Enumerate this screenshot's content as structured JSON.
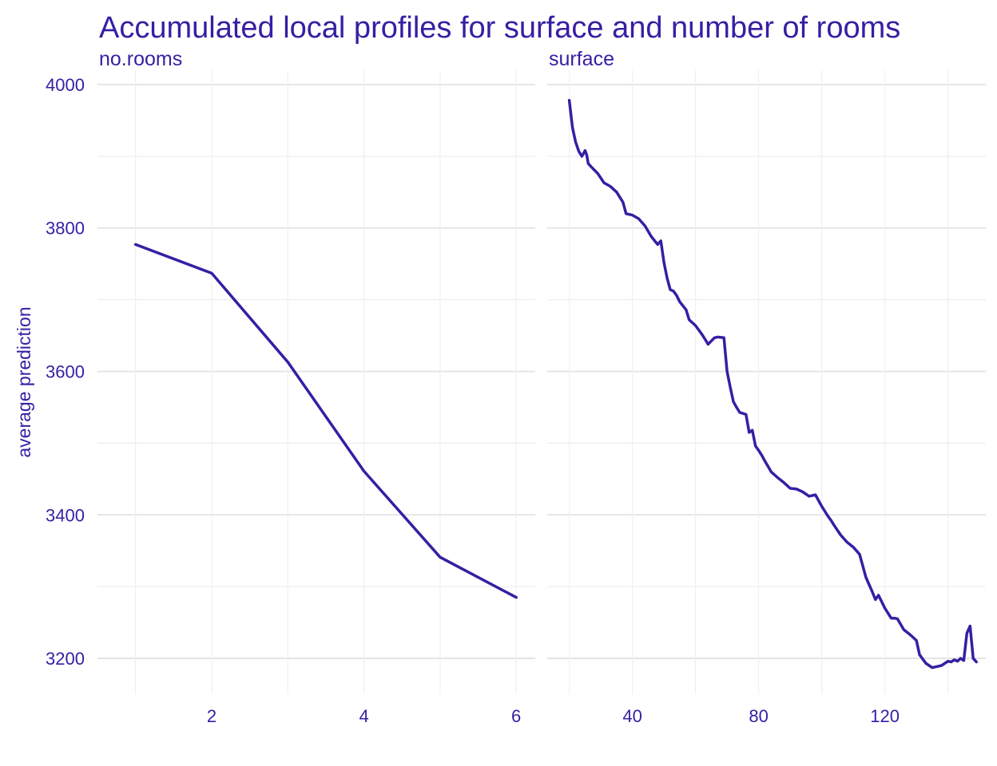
{
  "chart_data": {
    "type": "line",
    "title": "Accumulated local profiles for surface and number of rooms",
    "ylabel": "average prediction",
    "ylim": [
      3150,
      4020
    ],
    "yticks": [
      3200,
      3400,
      3600,
      3800,
      4000
    ],
    "grid": true,
    "color": "#371ea3",
    "panels": [
      {
        "name": "no.rooms",
        "xlim": [
          0.5,
          6.25
        ],
        "xticks": [
          2,
          4,
          6
        ],
        "series": [
          {
            "x": [
              1,
              2,
              3,
              4,
              5,
              6
            ],
            "y": [
              3777,
              3737,
              3613,
              3461,
              3341,
              3285
            ]
          }
        ]
      },
      {
        "name": "surface",
        "xlim": [
          13,
          152
        ],
        "xticks": [
          40,
          80,
          120
        ],
        "series": [
          {
            "x": [
              20,
              21,
              22,
              23,
              24,
              25,
              25.5,
              26,
              27,
              29,
              31,
              33,
              35,
              37,
              38,
              40,
              42,
              44,
              46,
              48,
              49,
              50,
              51,
              52,
              53,
              54,
              55,
              57,
              58,
              60,
              62,
              63,
              64,
              66,
              67,
              69,
              70,
              71,
              72,
              73,
              74,
              76,
              77,
              78,
              79,
              80,
              81,
              82,
              84,
              86,
              88,
              90,
              92,
              94,
              96,
              98,
              100,
              102,
              103,
              104,
              106,
              108,
              110,
              112,
              114,
              116,
              117,
              118,
              120,
              122,
              123,
              124,
              126,
              128,
              129,
              130,
              131,
              133,
              134,
              135,
              136,
              137,
              138,
              139,
              140,
              141,
              142,
              143,
              144,
              145,
              146,
              147,
              148,
              149
            ],
            "y": [
              3978,
              3940,
              3920,
              3907,
              3900,
              3908,
              3902,
              3890,
              3885,
              3876,
              3863,
              3858,
              3850,
              3836,
              3820,
              3818,
              3813,
              3803,
              3788,
              3777,
              3782,
              3752,
              3730,
              3714,
              3712,
              3706,
              3697,
              3686,
              3672,
              3664,
              3652,
              3645,
              3638,
              3647,
              3648,
              3647,
              3600,
              3578,
              3558,
              3550,
              3543,
              3540,
              3515,
              3518,
              3496,
              3490,
              3483,
              3475,
              3460,
              3452,
              3445,
              3437,
              3436,
              3432,
              3426,
              3428,
              3412,
              3398,
              3392,
              3385,
              3372,
              3362,
              3355,
              3345,
              3313,
              3293,
              3282,
              3288,
              3270,
              3256,
              3256,
              3255,
              3240,
              3233,
              3229,
              3225,
              3205,
              3193,
              3190,
              3187,
              3188,
              3189,
              3190,
              3193,
              3196,
              3195,
              3198,
              3196,
              3200,
              3197,
              3235,
              3245,
              3200,
              3195
            ]
          }
        ]
      }
    ]
  }
}
